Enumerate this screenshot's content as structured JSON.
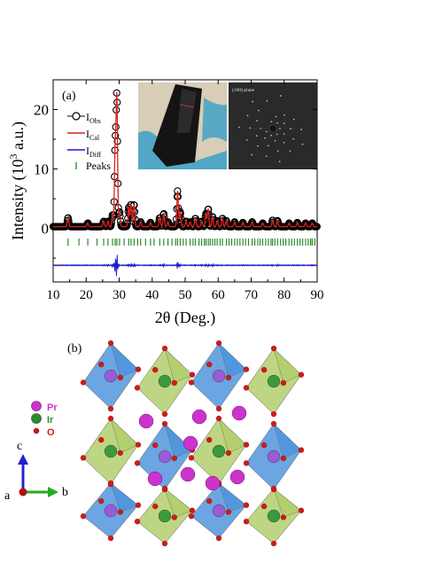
{
  "panel_a_label": "(a)",
  "panel_b_label": "(b)",
  "inset_right_caption": "(100) plane",
  "inset_left_caption": "",
  "chart_data": {
    "type": "line",
    "xlabel": "2θ (Deg.)",
    "ylabel_prefix": "Intensity (10",
    "ylabel_sup": "3",
    "ylabel_suffix": " a.u.)",
    "xlim": [
      10,
      90
    ],
    "ylim": [
      -9,
      25
    ],
    "xticks": [
      10,
      20,
      30,
      40,
      50,
      60,
      70,
      80,
      90
    ],
    "yticks": [
      0,
      10,
      20
    ],
    "legend": {
      "placement": "top-left",
      "entries": [
        {
          "key": "obs",
          "base": "I",
          "sub": "Obs"
        },
        {
          "key": "cal",
          "base": "I",
          "sub": "Cal"
        },
        {
          "key": "diff",
          "base": "I",
          "sub": "Diff"
        },
        {
          "key": "peaks",
          "base": "Peaks",
          "sub": ""
        }
      ]
    },
    "colors": {
      "obs": "#000000",
      "cal": "#e0201b",
      "diff": "#1a1acc",
      "peaks": "#2e8b2e"
    },
    "background_level": 0.3,
    "diff_offset": -6.2,
    "peak_marker_level": -2.3,
    "peaks": [
      {
        "x": 14.5,
        "y": 1.5
      },
      {
        "x": 20.5,
        "y": 0.6
      },
      {
        "x": 25.3,
        "y": 0.9
      },
      {
        "x": 26.6,
        "y": 0.9
      },
      {
        "x": 28.0,
        "y": 2.0
      },
      {
        "x": 28.8,
        "y": 13.0
      },
      {
        "x": 29.3,
        "y": 21.5
      },
      {
        "x": 30.1,
        "y": 2.5
      },
      {
        "x": 32.9,
        "y": 3.2
      },
      {
        "x": 33.6,
        "y": 3.8
      },
      {
        "x": 34.5,
        "y": 3.8
      },
      {
        "x": 36.5,
        "y": 0.8
      },
      {
        "x": 39.5,
        "y": 0.7
      },
      {
        "x": 42.3,
        "y": 1.5
      },
      {
        "x": 43.5,
        "y": 2.2
      },
      {
        "x": 44.8,
        "y": 0.8
      },
      {
        "x": 47.7,
        "y": 6.0
      },
      {
        "x": 48.5,
        "y": 2.5
      },
      {
        "x": 50.3,
        "y": 0.9
      },
      {
        "x": 51.5,
        "y": 0.8
      },
      {
        "x": 53.1,
        "y": 1.4
      },
      {
        "x": 55.0,
        "y": 0.9
      },
      {
        "x": 56.3,
        "y": 2.2
      },
      {
        "x": 57.0,
        "y": 3.0
      },
      {
        "x": 58.3,
        "y": 1.7
      },
      {
        "x": 59.7,
        "y": 1.0
      },
      {
        "x": 61.3,
        "y": 1.4
      },
      {
        "x": 62.5,
        "y": 1.0
      },
      {
        "x": 65.0,
        "y": 0.8
      },
      {
        "x": 67.5,
        "y": 0.7
      },
      {
        "x": 70.3,
        "y": 0.8
      },
      {
        "x": 73.5,
        "y": 0.6
      },
      {
        "x": 76.5,
        "y": 1.1
      },
      {
        "x": 78.0,
        "y": 1.0
      },
      {
        "x": 81.5,
        "y": 0.6
      },
      {
        "x": 84.0,
        "y": 0.7
      },
      {
        "x": 86.5,
        "y": 0.6
      },
      {
        "x": 88.5,
        "y": 0.6
      }
    ],
    "peak_markers": [
      14.5,
      17.8,
      20.5,
      23.3,
      25.3,
      26.6,
      28.0,
      28.8,
      29.3,
      30.1,
      31.5,
      32.9,
      33.6,
      34.5,
      35.6,
      36.5,
      38.0,
      39.5,
      40.6,
      42.3,
      43.5,
      44.8,
      46.0,
      47.1,
      47.7,
      48.5,
      49.4,
      50.3,
      51.5,
      52.4,
      53.1,
      54.2,
      55.0,
      55.8,
      56.3,
      57.0,
      57.6,
      58.3,
      59.0,
      59.7,
      60.6,
      61.3,
      62.5,
      63.3,
      64.1,
      65.0,
      65.8,
      66.6,
      67.5,
      68.3,
      69.2,
      70.3,
      71.1,
      72.0,
      72.7,
      73.5,
      74.4,
      75.2,
      76.0,
      76.5,
      77.2,
      78.0,
      78.9,
      79.7,
      80.5,
      81.5,
      82.3,
      83.1,
      84.0,
      84.8,
      85.6,
      86.5,
      87.3,
      88.0,
      88.5,
      89.3
    ]
  },
  "structure": {
    "legend": [
      {
        "key": "pr",
        "label": "Pr",
        "color": "#cc33cc"
      },
      {
        "key": "ir",
        "label": "Ir",
        "color": "#2e8b2e"
      },
      {
        "key": "o",
        "label": "O",
        "color": "#d11a1a"
      }
    ],
    "axes": {
      "c": "c",
      "a": "a",
      "b": "b"
    },
    "colors": {
      "pr_octahedron": "#3a88d8",
      "ir_octahedron": "#a8c85a",
      "axis_c": "#2222cc",
      "axis_b": "#22aa22",
      "axis_a": "#aa1111"
    }
  }
}
